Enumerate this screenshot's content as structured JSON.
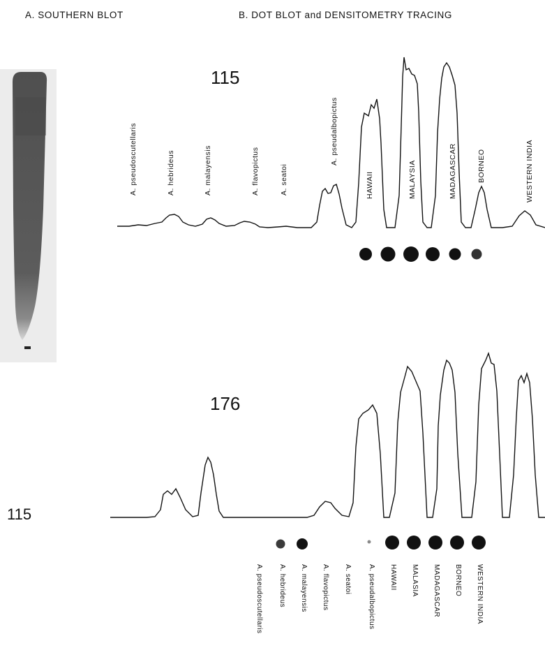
{
  "figure": {
    "header_a": "A. SOUTHERN BLOT",
    "header_b": "B. DOT BLOT and DENSITOMETRY TRACING",
    "side_probe_label": "115",
    "colors": {
      "ink": "#111111",
      "blot_dark": "#545454",
      "blot_bg": "#ececec"
    }
  },
  "panels": [
    {
      "probe": "115",
      "labels": [
        "A. pseudoscutellaris",
        "A. hebrideus",
        "A. malayensis",
        "A. flavopictus",
        "A. seatoi",
        "A. pseudalbopictus",
        "HAWAII",
        "MALAYSIA",
        "MADAGASCAR",
        "BORNEO",
        "WESTERN INDIA"
      ]
    },
    {
      "probe": "176",
      "labels": [
        "A. pseudoscutellaris",
        "A. hebrideus",
        "A. malayensis",
        "A. flavopictus",
        "A. seatoi",
        "A. pseudalbopictus",
        "HAWAII",
        "MALASIA",
        "MADAGASCAR",
        "BORNEO",
        "WESTERN INDIA"
      ]
    }
  ]
}
